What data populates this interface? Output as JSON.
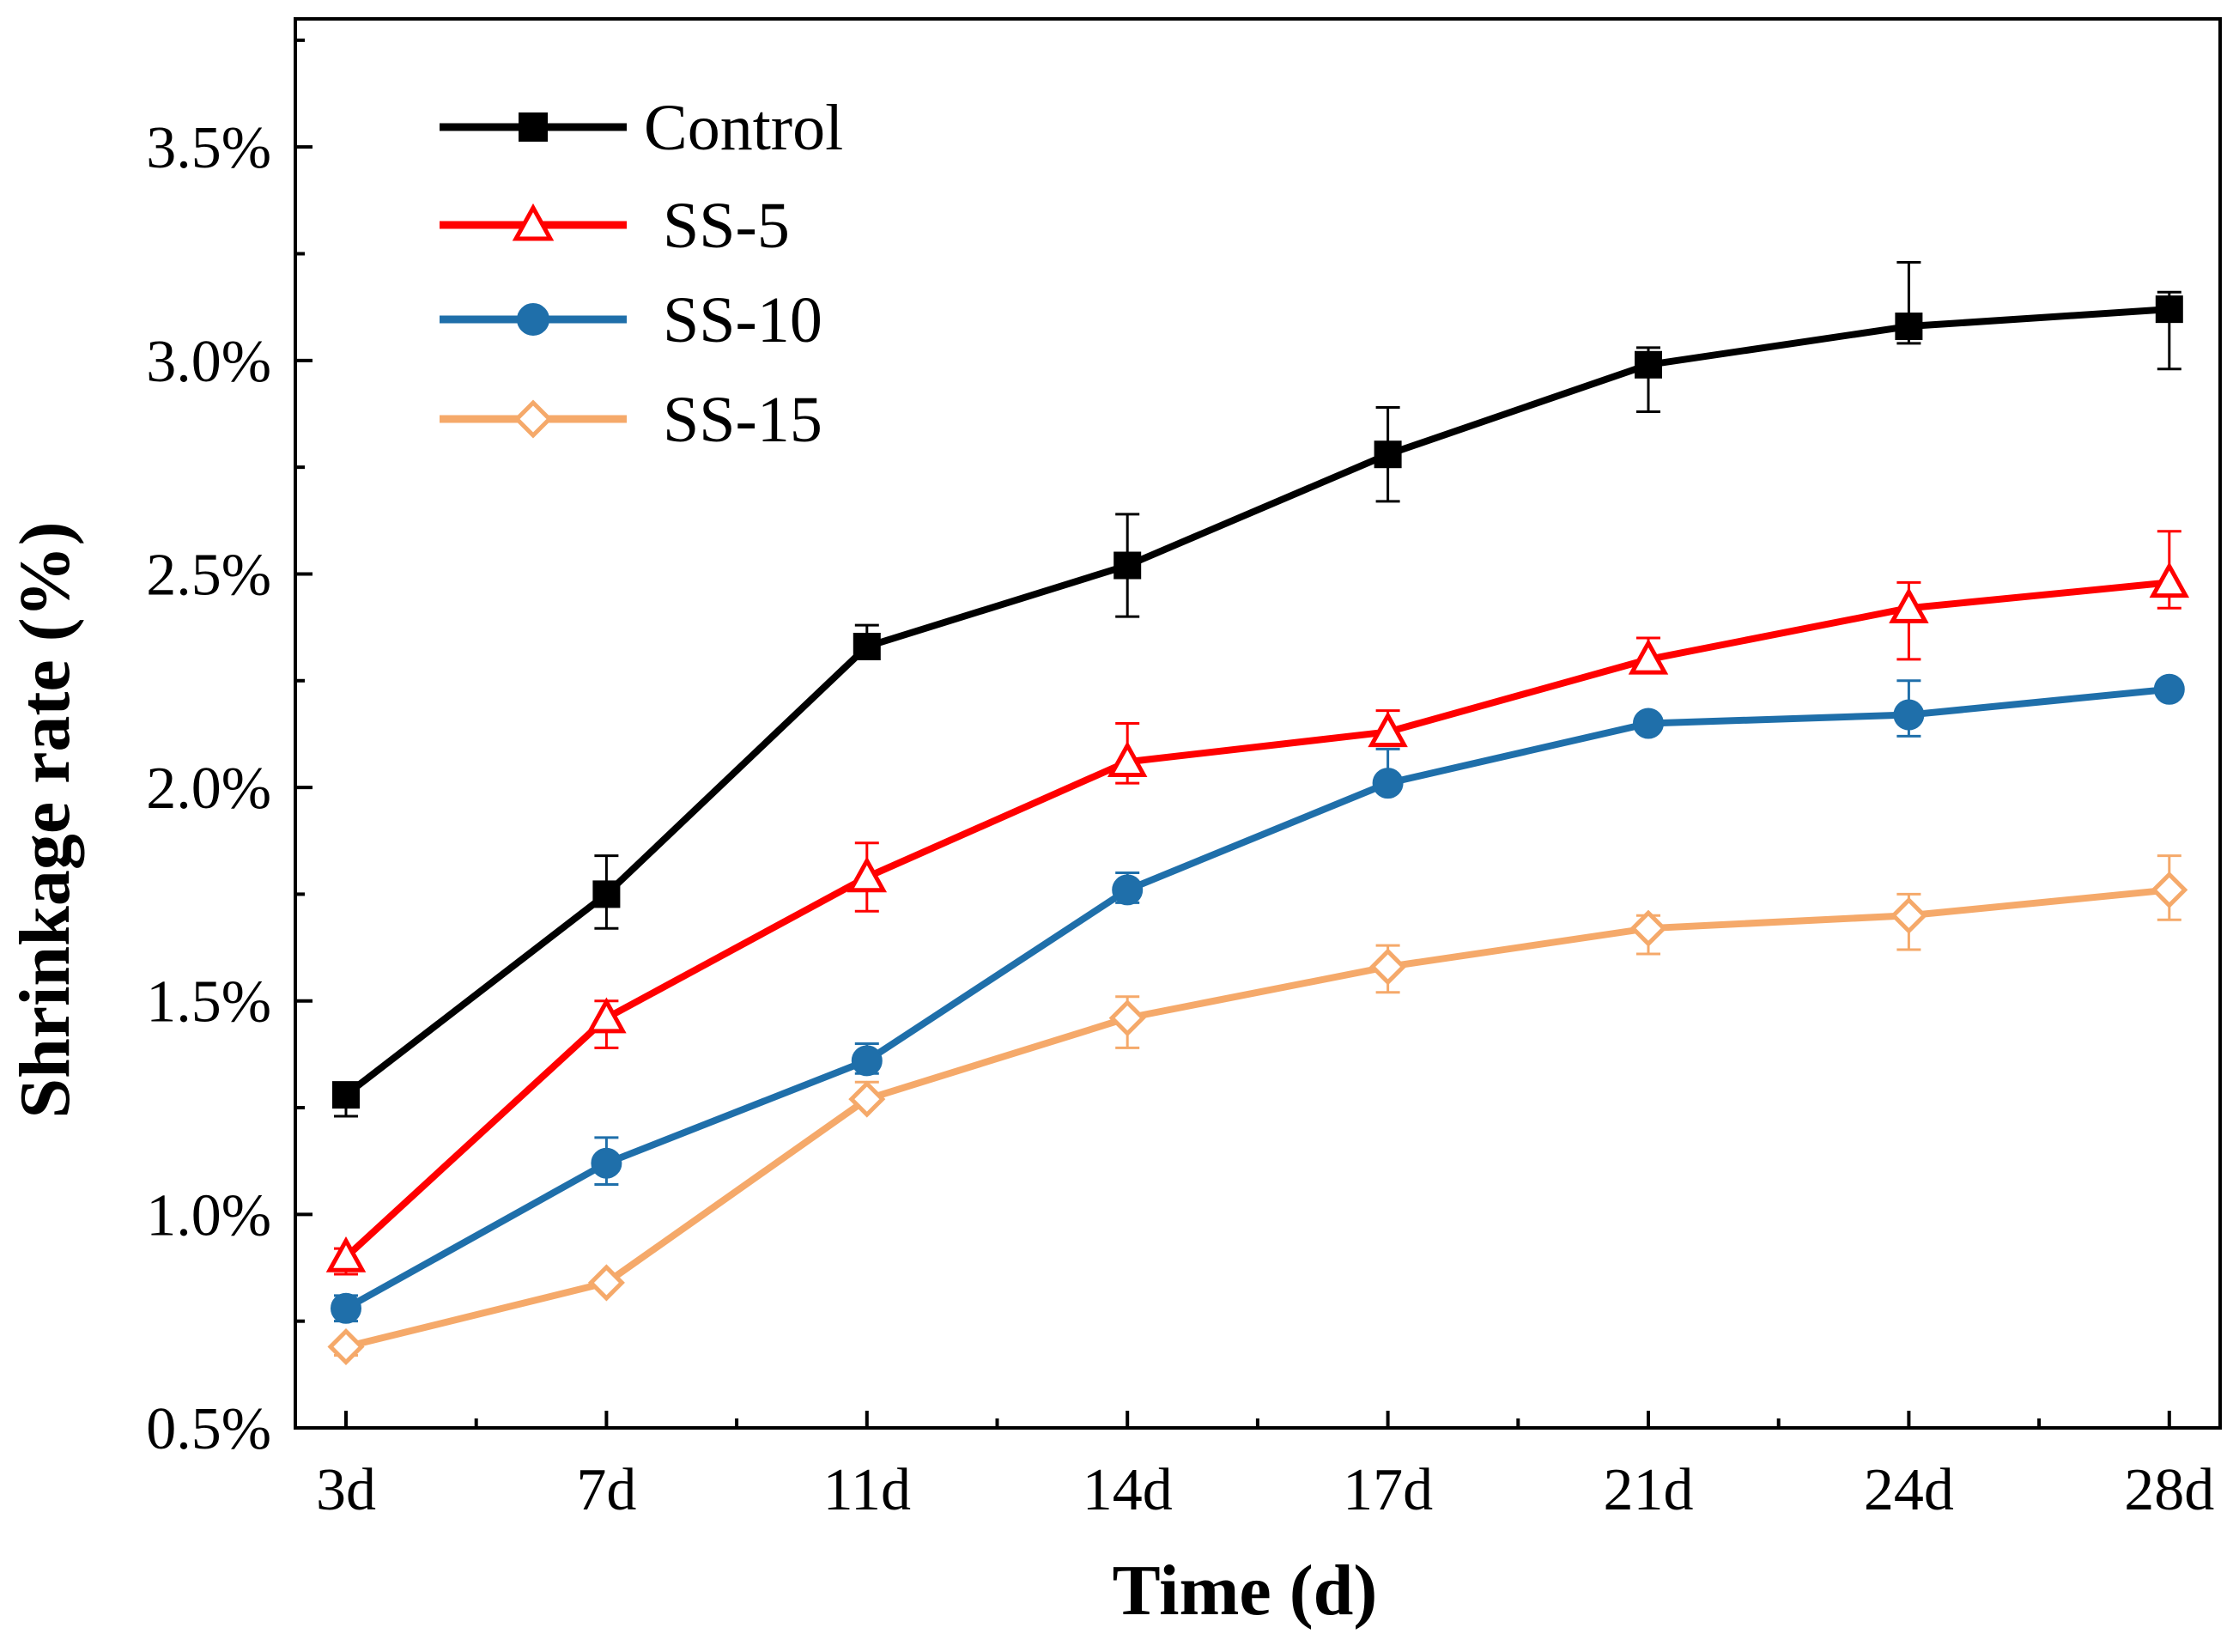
{
  "chart_data": {
    "type": "line",
    "title": "",
    "xlabel": "Time (d)",
    "ylabel": "Shrinkage rate (%)",
    "categories": [
      "3d",
      "7d",
      "11d",
      "14d",
      "17d",
      "21d",
      "24d",
      "28d"
    ],
    "ylim": [
      0.5,
      3.8
    ],
    "yticks": [
      0.5,
      1.0,
      1.5,
      2.0,
      2.5,
      3.0,
      3.5
    ],
    "ytick_labels": [
      "0.5%",
      "1.0%",
      "1.5%",
      "2.0%",
      "2.5%",
      "3.0%",
      "3.5%"
    ],
    "grid": false,
    "legend_position": "top-left",
    "series": [
      {
        "name": "Control",
        "color": "#000000",
        "marker": "filled-square",
        "values": [
          1.28,
          1.75,
          2.33,
          2.52,
          2.78,
          2.99,
          3.08,
          3.12
        ],
        "err_low": [
          0.05,
          0.08,
          0.0,
          0.12,
          0.11,
          0.11,
          0.04,
          0.14
        ],
        "err_high": [
          0.0,
          0.09,
          0.05,
          0.12,
          0.11,
          0.04,
          0.15,
          0.04
        ]
      },
      {
        "name": "SS-5",
        "color": "#ff0000",
        "marker": "open-triangle",
        "values": [
          0.9,
          1.46,
          1.79,
          2.06,
          2.13,
          2.3,
          2.42,
          2.48
        ],
        "err_low": [
          0.04,
          0.07,
          0.08,
          0.05,
          0.0,
          0.0,
          0.12,
          0.06
        ],
        "err_high": [
          0.02,
          0.04,
          0.08,
          0.09,
          0.05,
          0.05,
          0.06,
          0.12
        ]
      },
      {
        "name": "SS-10",
        "color": "#1f6faa",
        "marker": "filled-circle",
        "values": [
          0.78,
          1.12,
          1.36,
          1.76,
          2.01,
          2.15,
          2.17,
          2.23
        ],
        "err_low": [
          0.03,
          0.05,
          0.03,
          0.03,
          0.0,
          0.0,
          0.05,
          0.0
        ],
        "err_high": [
          0.03,
          0.06,
          0.04,
          0.04,
          0.08,
          0.0,
          0.08,
          0.02
        ]
      },
      {
        "name": "SS-15",
        "color": "#f5a96a",
        "marker": "open-diamond",
        "values": [
          0.69,
          0.84,
          1.27,
          1.46,
          1.58,
          1.67,
          1.7,
          1.76
        ],
        "err_low": [
          0.02,
          0.0,
          0.0,
          0.07,
          0.06,
          0.06,
          0.08,
          0.07
        ],
        "err_high": [
          0.0,
          0.0,
          0.04,
          0.05,
          0.05,
          0.03,
          0.05,
          0.08
        ]
      }
    ]
  }
}
